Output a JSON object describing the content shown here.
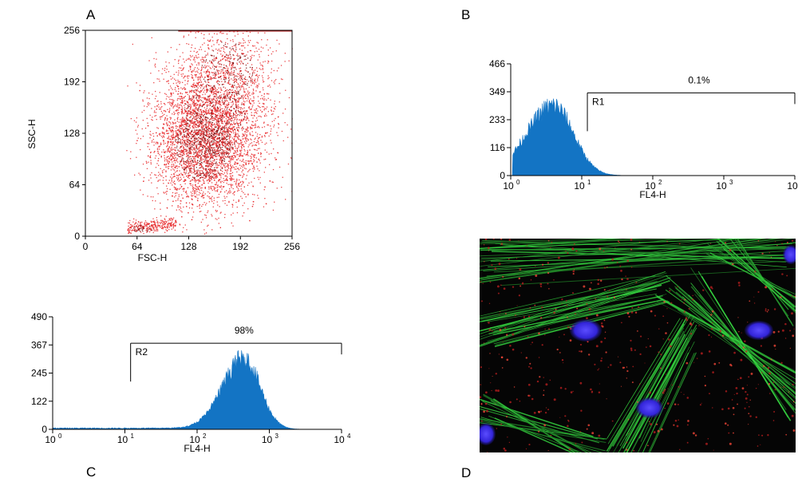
{
  "panel_labels": {
    "a": "A",
    "b": "B",
    "c": "C",
    "d": "D"
  },
  "chart_data": [
    {
      "panel": "A",
      "type": "scatter",
      "xlabel": "FSC-H",
      "ylabel": "SSC-H",
      "xlim": [
        0,
        256
      ],
      "ylim": [
        0,
        256
      ],
      "xticks": [
        "0",
        "64",
        "128",
        "192",
        "256"
      ],
      "yticks": [
        "0",
        "64",
        "128",
        "192",
        "256"
      ],
      "point_color": "#e8282a",
      "clusters": [
        {
          "cx": 145,
          "cy": 112,
          "sx": 32,
          "sy": 38,
          "count": 3200
        },
        {
          "cx": 160,
          "cy": 150,
          "sx": 35,
          "sy": 45,
          "count": 1600
        },
        {
          "cx": 175,
          "cy": 205,
          "sx": 30,
          "sy": 35,
          "count": 700
        },
        {
          "cx": 70,
          "cy": 10,
          "sx": 12,
          "sy": 4,
          "count": 300
        }
      ],
      "grid": false
    },
    {
      "panel": "B",
      "type": "area",
      "xscale": "log",
      "xlabel": "FL4-H",
      "ylabel": "",
      "xlim": [
        1,
        10000
      ],
      "ylim": [
        0,
        466
      ],
      "xticks": [
        "10",
        "10",
        "10",
        "10",
        "10"
      ],
      "xtick_exponents": [
        "0",
        "1",
        "2",
        "3",
        "4"
      ],
      "yticks": [
        "0",
        "116",
        "233",
        "349",
        "466"
      ],
      "fill_color": "#1374c4",
      "peak_x": 4,
      "peak_y": 300,
      "log_sigma": 0.28,
      "gate": {
        "name": "R1",
        "x_start": 12,
        "x_end": 10000,
        "percent": "0.1%"
      },
      "grid": false
    },
    {
      "panel": "C",
      "type": "area",
      "xscale": "log",
      "xlabel": "FL4-H",
      "ylabel": "",
      "xlim": [
        1,
        10000
      ],
      "ylim": [
        0,
        490
      ],
      "xticks": [
        "10",
        "10",
        "10",
        "10",
        "10"
      ],
      "xtick_exponents": [
        "0",
        "1",
        "2",
        "3",
        "4"
      ],
      "yticks": [
        "0",
        "122",
        "245",
        "367",
        "490"
      ],
      "fill_color": "#1374c4",
      "peak_x": 450,
      "peak_y": 315,
      "log_sigma": 0.22,
      "gate": {
        "name": "R2",
        "x_start": 12,
        "x_end": 10000,
        "percent": "98%"
      },
      "grid": false
    }
  ]
}
